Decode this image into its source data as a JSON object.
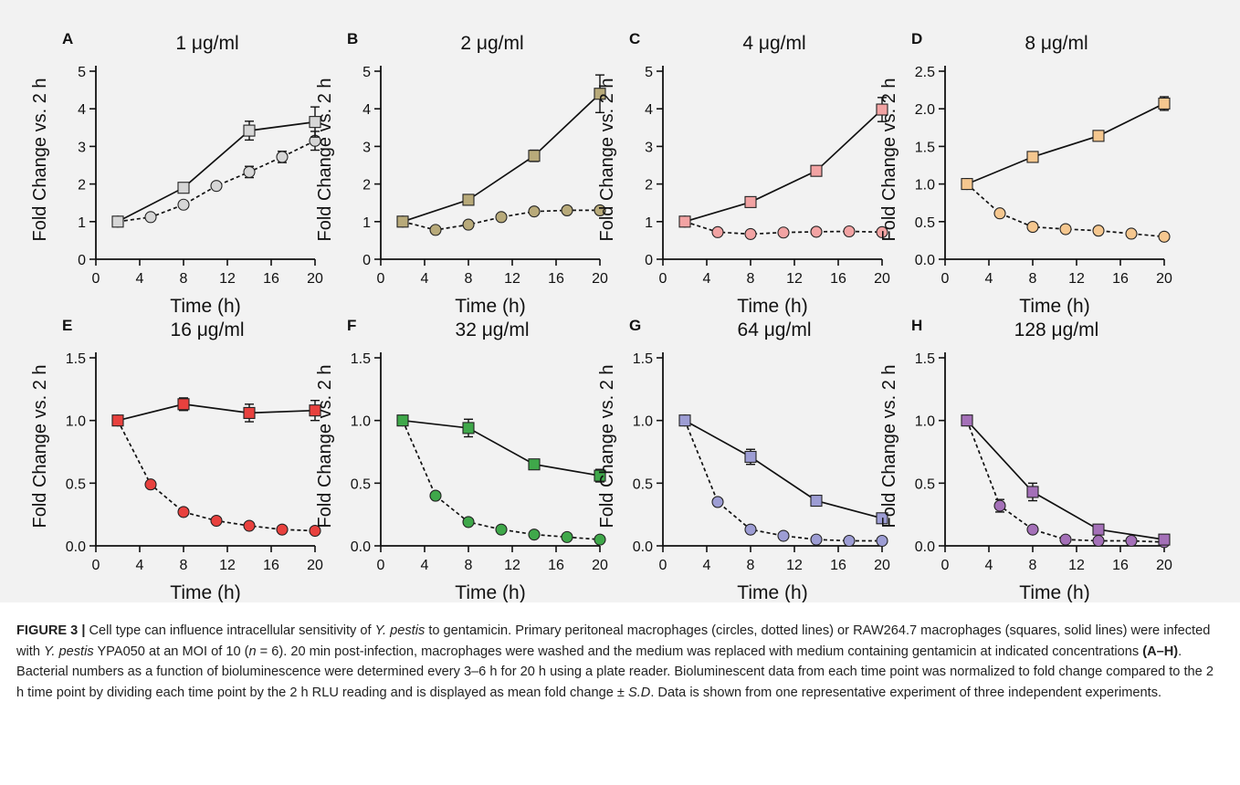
{
  "figure": {
    "caption": {
      "label": "FIGURE 3 |",
      "t1": " Cell type can influence intracellular sensitivity of ",
      "yp1": "Y. pestis",
      "t2": " to gentamicin. Primary peritoneal macrophages (circles, dotted lines) or RAW264.7 macrophages (squares, solid lines) were infected with ",
      "yp2": "Y. pestis",
      "t3": " YPA050 at an MOI of 10 (",
      "n": "n",
      "t4": " = 6). 20 min post-infection, macrophages were washed and the medium was replaced with medium containing gentamicin at indicated concentrations ",
      "range": "(A–H)",
      "t5": ". Bacterial numbers as a function of bioluminescence were determined every 3–6 h for 20 h using a plate reader. Bioluminescent data from each time point was normalized to fold change compared to the 2 h time point by dividing each time point by the 2 h RLU reading and is displayed as mean fold change ± ",
      "sd": "S.D",
      "t6": ". Data is shown from one representative experiment of three independent experiments."
    }
  },
  "chart_data": [
    {
      "type": "line",
      "panel": "A",
      "title": "1 μg/ml",
      "color": "#d6d6d6",
      "xlabel": "Time (h)",
      "ylabel": "Fold Change vs. 2 h",
      "xlim": [
        0,
        20
      ],
      "xticks": [
        0,
        4,
        8,
        12,
        16,
        20
      ],
      "ylim": [
        0,
        5
      ],
      "yticks": [
        0,
        1,
        2,
        3,
        4,
        5
      ],
      "ytick_labels": [
        "0",
        "1",
        "2",
        "3",
        "4",
        "5"
      ],
      "series": [
        {
          "marker": "square",
          "line": "solid",
          "x": [
            2,
            8,
            14,
            20
          ],
          "y": [
            1.0,
            1.9,
            3.42,
            3.65
          ],
          "err": [
            0.05,
            0.08,
            0.25,
            0.4
          ]
        },
        {
          "marker": "circle",
          "line": "dashed",
          "x": [
            2,
            5,
            8,
            11,
            14,
            17,
            20
          ],
          "y": [
            1.0,
            1.12,
            1.45,
            1.95,
            2.32,
            2.72,
            3.15
          ],
          "err": [
            0.03,
            0.04,
            0.06,
            0.07,
            0.15,
            0.15,
            0.25
          ]
        }
      ]
    },
    {
      "type": "line",
      "panel": "B",
      "title": "2 μg/ml",
      "color": "#b8aa7a",
      "xlabel": "Time (h)",
      "ylabel": "Fold Change vs. 2 h",
      "xlim": [
        0,
        20
      ],
      "xticks": [
        0,
        4,
        8,
        12,
        16,
        20
      ],
      "ylim": [
        0,
        5
      ],
      "yticks": [
        0,
        1,
        2,
        3,
        4,
        5
      ],
      "ytick_labels": [
        "0",
        "1",
        "2",
        "3",
        "4",
        "5"
      ],
      "series": [
        {
          "marker": "square",
          "line": "solid",
          "x": [
            2,
            8,
            14,
            20
          ],
          "y": [
            1.0,
            1.58,
            2.75,
            4.4
          ],
          "err": [
            0.05,
            0.08,
            0.15,
            0.5
          ]
        },
        {
          "marker": "circle",
          "line": "dashed",
          "x": [
            2,
            5,
            8,
            11,
            14,
            17,
            20
          ],
          "y": [
            1.0,
            0.78,
            0.92,
            1.12,
            1.27,
            1.3,
            1.3
          ],
          "err": [
            0.03,
            0.04,
            0.04,
            0.04,
            0.05,
            0.05,
            0.05
          ]
        }
      ]
    },
    {
      "type": "line",
      "panel": "C",
      "title": "4 μg/ml",
      "color": "#f2a3a3",
      "xlabel": "Time (h)",
      "ylabel": "Fold Change vs. 2 h",
      "xlim": [
        0,
        20
      ],
      "xticks": [
        0,
        4,
        8,
        12,
        16,
        20
      ],
      "ylim": [
        0,
        5
      ],
      "yticks": [
        0,
        1,
        2,
        3,
        4,
        5
      ],
      "ytick_labels": [
        "0",
        "1",
        "2",
        "3",
        "4",
        "5"
      ],
      "series": [
        {
          "marker": "square",
          "line": "solid",
          "x": [
            2,
            8,
            14,
            20
          ],
          "y": [
            1.0,
            1.52,
            2.35,
            3.98
          ],
          "err": [
            0.05,
            0.08,
            0.1,
            0.32
          ]
        },
        {
          "marker": "circle",
          "line": "dashed",
          "x": [
            2,
            5,
            8,
            11,
            14,
            17,
            20
          ],
          "y": [
            1.0,
            0.72,
            0.67,
            0.71,
            0.73,
            0.74,
            0.72
          ],
          "err": [
            0.03,
            0.03,
            0.03,
            0.03,
            0.03,
            0.03,
            0.03
          ]
        }
      ]
    },
    {
      "type": "line",
      "panel": "D",
      "title": "8 μg/ml",
      "color": "#f5c78f",
      "xlabel": "Time (h)",
      "ylabel": "Fold Change vs. 2 h",
      "xlim": [
        0,
        20
      ],
      "xticks": [
        0,
        4,
        8,
        12,
        16,
        20
      ],
      "ylim": [
        0,
        2.5
      ],
      "yticks": [
        0,
        0.5,
        1.0,
        1.5,
        2.0,
        2.5
      ],
      "ytick_labels": [
        "0.0",
        "0.5",
        "1.0",
        "1.5",
        "2.0",
        "2.5"
      ],
      "series": [
        {
          "marker": "square",
          "line": "solid",
          "x": [
            2,
            8,
            14,
            20
          ],
          "y": [
            1.0,
            1.36,
            1.64,
            2.07
          ],
          "err": [
            0.02,
            0.03,
            0.03,
            0.09
          ]
        },
        {
          "marker": "circle",
          "line": "dashed",
          "x": [
            2,
            5,
            8,
            11,
            14,
            17,
            20
          ],
          "y": [
            1.0,
            0.61,
            0.43,
            0.4,
            0.38,
            0.34,
            0.3
          ],
          "err": [
            0.02,
            0.02,
            0.02,
            0.02,
            0.02,
            0.02,
            0.02
          ]
        }
      ]
    },
    {
      "type": "line",
      "panel": "E",
      "title": "16 μg/ml",
      "color": "#e8413e",
      "xlabel": "Time (h)",
      "ylabel": "Fold Change vs. 2 h",
      "xlim": [
        0,
        20
      ],
      "xticks": [
        0,
        4,
        8,
        12,
        16,
        20
      ],
      "ylim": [
        0,
        1.5
      ],
      "yticks": [
        0,
        0.5,
        1.0,
        1.5
      ],
      "ytick_labels": [
        "0.0",
        "0.5",
        "1.0",
        "1.5"
      ],
      "series": [
        {
          "marker": "square",
          "line": "solid",
          "x": [
            2,
            8,
            14,
            20
          ],
          "y": [
            1.0,
            1.13,
            1.06,
            1.08
          ],
          "err": [
            0.02,
            0.05,
            0.07,
            0.08
          ]
        },
        {
          "marker": "circle",
          "line": "dashed",
          "x": [
            2,
            5,
            8,
            11,
            14,
            17,
            20
          ],
          "y": [
            1.0,
            0.49,
            0.27,
            0.2,
            0.16,
            0.13,
            0.12
          ],
          "err": [
            0.01,
            0.01,
            0.01,
            0.01,
            0.01,
            0.01,
            0.01
          ]
        }
      ]
    },
    {
      "type": "line",
      "panel": "F",
      "title": "32 μg/ml",
      "color": "#3fa84a",
      "xlabel": "Time (h)",
      "ylabel": "Fold Change vs. 2 h",
      "xlim": [
        0,
        20
      ],
      "xticks": [
        0,
        4,
        8,
        12,
        16,
        20
      ],
      "ylim": [
        0,
        1.5
      ],
      "yticks": [
        0,
        0.5,
        1.0,
        1.5
      ],
      "ytick_labels": [
        "0.0",
        "0.5",
        "1.0",
        "1.5"
      ],
      "series": [
        {
          "marker": "square",
          "line": "solid",
          "x": [
            2,
            8,
            14,
            20
          ],
          "y": [
            1.0,
            0.94,
            0.65,
            0.56
          ],
          "err": [
            0.02,
            0.07,
            0.04,
            0.05
          ]
        },
        {
          "marker": "circle",
          "line": "dashed",
          "x": [
            2,
            5,
            8,
            11,
            14,
            17,
            20
          ],
          "y": [
            1.0,
            0.4,
            0.19,
            0.13,
            0.09,
            0.07,
            0.05
          ],
          "err": [
            0.01,
            0.01,
            0.01,
            0.01,
            0.01,
            0.01,
            0.01
          ]
        }
      ]
    },
    {
      "type": "line",
      "panel": "G",
      "title": "64 μg/ml",
      "color": "#9d9dd4",
      "xlabel": "Time (h)",
      "ylabel": "Fold Change vs. 2 h",
      "xlim": [
        0,
        20
      ],
      "xticks": [
        0,
        4,
        8,
        12,
        16,
        20
      ],
      "ylim": [
        0,
        1.5
      ],
      "yticks": [
        0,
        0.5,
        1.0,
        1.5
      ],
      "ytick_labels": [
        "0.0",
        "0.5",
        "1.0",
        "1.5"
      ],
      "series": [
        {
          "marker": "square",
          "line": "solid",
          "x": [
            2,
            8,
            14,
            20
          ],
          "y": [
            1.0,
            0.71,
            0.36,
            0.22
          ],
          "err": [
            0.02,
            0.06,
            0.02,
            0.02
          ]
        },
        {
          "marker": "circle",
          "line": "dashed",
          "x": [
            2,
            5,
            8,
            11,
            14,
            17,
            20
          ],
          "y": [
            1.0,
            0.35,
            0.13,
            0.08,
            0.05,
            0.04,
            0.04
          ],
          "err": [
            0.01,
            0.01,
            0.01,
            0.01,
            0.01,
            0.01,
            0.01
          ]
        }
      ]
    },
    {
      "type": "line",
      "panel": "H",
      "title": "128 μg/ml",
      "color": "#a470b8",
      "xlabel": "Time (h)",
      "ylabel": "Fold Change vs. 2 h",
      "xlim": [
        0,
        20
      ],
      "xticks": [
        0,
        4,
        8,
        12,
        16,
        20
      ],
      "ylim": [
        0,
        1.5
      ],
      "yticks": [
        0,
        0.5,
        1.0,
        1.5
      ],
      "ytick_labels": [
        "0.0",
        "0.5",
        "1.0",
        "1.5"
      ],
      "series": [
        {
          "marker": "square",
          "line": "solid",
          "x": [
            2,
            8,
            14,
            20
          ],
          "y": [
            1.0,
            0.43,
            0.13,
            0.05
          ],
          "err": [
            0.02,
            0.07,
            0.02,
            0.02
          ]
        },
        {
          "marker": "circle",
          "line": "dashed",
          "x": [
            2,
            5,
            8,
            11,
            14,
            17,
            20
          ],
          "y": [
            1.0,
            0.32,
            0.13,
            0.05,
            0.04,
            0.04,
            0.03
          ],
          "err": [
            0.02,
            0.05,
            0.01,
            0.01,
            0.01,
            0.01,
            0.01
          ]
        }
      ]
    }
  ]
}
